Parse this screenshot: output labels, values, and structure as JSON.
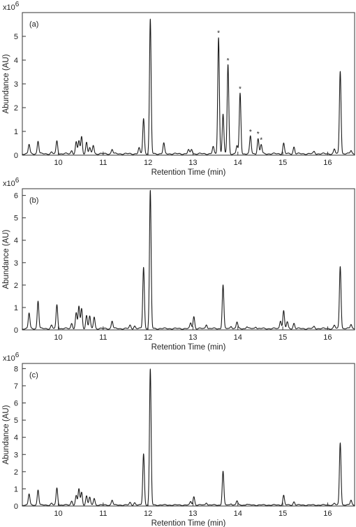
{
  "chart_data": [
    {
      "type": "line",
      "panel_label": "(a)",
      "multiplier": "x10",
      "multiplier_exp": "6",
      "xlabel": "Retention Time (min)",
      "ylabel": "Abundance (AU)",
      "xlim": [
        9.2,
        16.6
      ],
      "ylim": [
        0,
        6
      ],
      "xticks": [
        10,
        11,
        12,
        13,
        14,
        15,
        16
      ],
      "yticks": [
        0,
        1,
        2,
        3,
        4,
        5
      ],
      "baseline": 0.06,
      "peaks": [
        {
          "x": 9.35,
          "y": 0.45
        },
        {
          "x": 9.55,
          "y": 0.6
        },
        {
          "x": 9.85,
          "y": 0.12
        },
        {
          "x": 9.97,
          "y": 0.6
        },
        {
          "x": 10.3,
          "y": 0.2
        },
        {
          "x": 10.4,
          "y": 0.55
        },
        {
          "x": 10.46,
          "y": 0.6
        },
        {
          "x": 10.52,
          "y": 0.78
        },
        {
          "x": 10.63,
          "y": 0.55
        },
        {
          "x": 10.7,
          "y": 0.3
        },
        {
          "x": 10.78,
          "y": 0.42
        },
        {
          "x": 11.2,
          "y": 0.25
        },
        {
          "x": 11.8,
          "y": 0.3
        },
        {
          "x": 11.9,
          "y": 1.55
        },
        {
          "x": 12.05,
          "y": 5.7
        },
        {
          "x": 12.35,
          "y": 0.5
        },
        {
          "x": 12.9,
          "y": 0.22
        },
        {
          "x": 12.97,
          "y": 0.25
        },
        {
          "x": 13.45,
          "y": 0.35
        },
        {
          "x": 13.57,
          "y": 4.95
        },
        {
          "x": 13.67,
          "y": 1.72
        },
        {
          "x": 13.78,
          "y": 3.8
        },
        {
          "x": 13.98,
          "y": 0.4
        },
        {
          "x": 14.05,
          "y": 2.6
        },
        {
          "x": 14.28,
          "y": 0.8
        },
        {
          "x": 14.45,
          "y": 0.7
        },
        {
          "x": 14.52,
          "y": 0.45
        },
        {
          "x": 15.02,
          "y": 0.5
        },
        {
          "x": 15.25,
          "y": 0.35
        },
        {
          "x": 15.7,
          "y": 0.15
        },
        {
          "x": 16.15,
          "y": 0.25
        },
        {
          "x": 16.28,
          "y": 3.55
        },
        {
          "x": 16.52,
          "y": 0.2
        }
      ],
      "starred_x": [
        13.57,
        13.78,
        14.05,
        14.28,
        14.45,
        14.52
      ]
    },
    {
      "type": "line",
      "panel_label": "(b)",
      "multiplier": "x10",
      "multiplier_exp": "6",
      "xlabel": "Retention Time (min)",
      "ylabel": "Abundance (AU)",
      "xlim": [
        9.2,
        16.6
      ],
      "ylim": [
        0,
        6.3
      ],
      "xticks": [
        10,
        11,
        12,
        13,
        14,
        15,
        16
      ],
      "yticks": [
        0,
        1,
        2,
        3,
        4,
        5,
        6
      ],
      "baseline": 0.06,
      "peaks": [
        {
          "x": 9.35,
          "y": 0.75
        },
        {
          "x": 9.55,
          "y": 1.3
        },
        {
          "x": 9.85,
          "y": 0.2
        },
        {
          "x": 9.97,
          "y": 1.12
        },
        {
          "x": 10.3,
          "y": 0.3
        },
        {
          "x": 10.4,
          "y": 0.75
        },
        {
          "x": 10.46,
          "y": 1.05
        },
        {
          "x": 10.52,
          "y": 0.95
        },
        {
          "x": 10.63,
          "y": 0.65
        },
        {
          "x": 10.7,
          "y": 0.6
        },
        {
          "x": 10.8,
          "y": 0.58
        },
        {
          "x": 11.2,
          "y": 0.4
        },
        {
          "x": 11.6,
          "y": 0.2
        },
        {
          "x": 11.7,
          "y": 0.18
        },
        {
          "x": 11.9,
          "y": 2.8
        },
        {
          "x": 12.05,
          "y": 6.2
        },
        {
          "x": 12.95,
          "y": 0.3
        },
        {
          "x": 13.02,
          "y": 0.6
        },
        {
          "x": 13.3,
          "y": 0.25
        },
        {
          "x": 13.67,
          "y": 2.0
        },
        {
          "x": 13.85,
          "y": 0.18
        },
        {
          "x": 13.98,
          "y": 0.35
        },
        {
          "x": 14.2,
          "y": 0.15
        },
        {
          "x": 14.4,
          "y": 0.15
        },
        {
          "x": 14.95,
          "y": 0.42
        },
        {
          "x": 15.02,
          "y": 0.85
        },
        {
          "x": 15.1,
          "y": 0.35
        },
        {
          "x": 15.25,
          "y": 0.3
        },
        {
          "x": 15.7,
          "y": 0.15
        },
        {
          "x": 16.15,
          "y": 0.2
        },
        {
          "x": 16.28,
          "y": 2.85
        },
        {
          "x": 16.52,
          "y": 0.25
        }
      ],
      "starred_x": []
    },
    {
      "type": "line",
      "panel_label": "(c)",
      "multiplier": "x10",
      "multiplier_exp": "6",
      "xlabel": "Retention Time (min)",
      "ylabel": "Abundance (AU)",
      "xlim": [
        9.2,
        16.6
      ],
      "ylim": [
        0,
        8.3
      ],
      "xticks": [
        10,
        11,
        12,
        13,
        14,
        15,
        16
      ],
      "yticks": [
        0,
        1,
        2,
        3,
        4,
        5,
        6,
        7,
        8
      ],
      "baseline": 0.06,
      "peaks": [
        {
          "x": 9.35,
          "y": 0.7
        },
        {
          "x": 9.55,
          "y": 0.95
        },
        {
          "x": 9.85,
          "y": 0.15
        },
        {
          "x": 9.97,
          "y": 1.05
        },
        {
          "x": 10.3,
          "y": 0.3
        },
        {
          "x": 10.4,
          "y": 0.6
        },
        {
          "x": 10.46,
          "y": 1.0
        },
        {
          "x": 10.52,
          "y": 0.8
        },
        {
          "x": 10.63,
          "y": 0.6
        },
        {
          "x": 10.7,
          "y": 0.5
        },
        {
          "x": 10.8,
          "y": 0.45
        },
        {
          "x": 11.2,
          "y": 0.35
        },
        {
          "x": 11.6,
          "y": 0.2
        },
        {
          "x": 11.7,
          "y": 0.2
        },
        {
          "x": 11.9,
          "y": 3.05
        },
        {
          "x": 12.05,
          "y": 7.95
        },
        {
          "x": 12.95,
          "y": 0.25
        },
        {
          "x": 13.02,
          "y": 0.55
        },
        {
          "x": 13.3,
          "y": 0.2
        },
        {
          "x": 13.67,
          "y": 2.02
        },
        {
          "x": 13.85,
          "y": 0.15
        },
        {
          "x": 13.98,
          "y": 0.3
        },
        {
          "x": 14.2,
          "y": 0.12
        },
        {
          "x": 15.02,
          "y": 0.62
        },
        {
          "x": 15.25,
          "y": 0.25
        },
        {
          "x": 16.15,
          "y": 0.15
        },
        {
          "x": 16.28,
          "y": 3.7
        },
        {
          "x": 16.52,
          "y": 0.35
        }
      ],
      "starred_x": []
    }
  ]
}
